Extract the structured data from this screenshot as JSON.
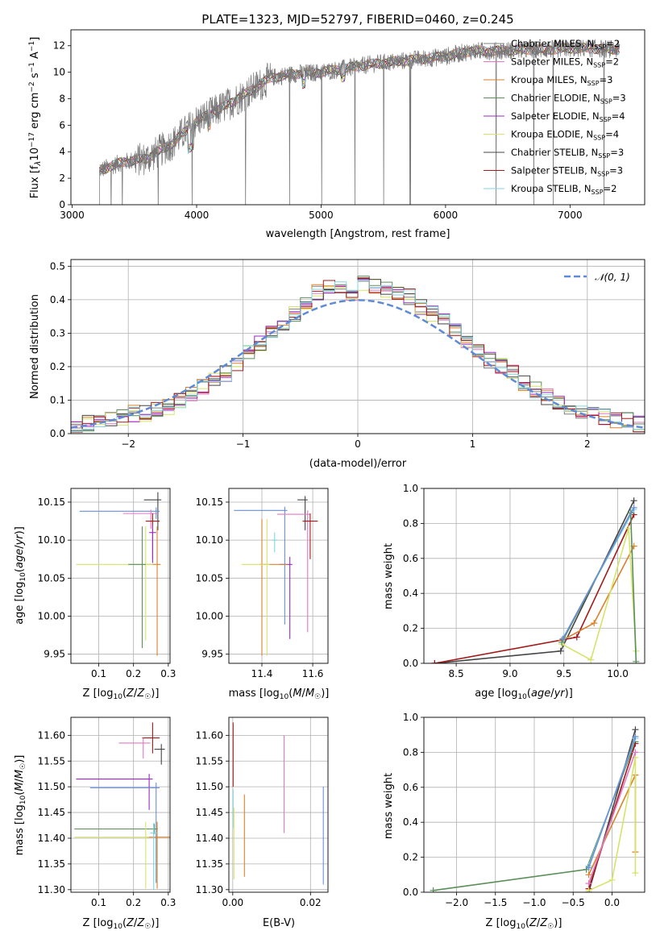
{
  "title": "PLATE=1323, MJD=52797, FIBERID=0460, z=0.245",
  "colors": {
    "chabrier_miles": "#7f7f7f",
    "salpeter_miles": "#e377c2",
    "kroupa_miles": "#d9822b",
    "chabrier_elodie": "#5a8f5a",
    "salpeter_elodie": "#9a28c8",
    "kroupa_elodie": "#d6e36a",
    "chabrier_stelib": "#444444",
    "salpeter_stelib": "#a31a1a",
    "kroupa_stelib": "#7fd6e0",
    "model_blue": "#6a8fd8",
    "normal_curve": "#5f8ad6"
  },
  "chart_data": [
    {
      "id": "spectrum",
      "type": "line",
      "xlabel": "wavelength [Angstrom, rest frame]",
      "ylabel": "Flux [f_λ10^-17 erg cm^-2 s^-1 A^-1]",
      "xlim": [
        2990,
        7600
      ],
      "ylim": [
        0,
        13.2
      ],
      "xticks": [
        3000,
        4000,
        5000,
        6000,
        7000
      ],
      "yticks": [
        0,
        2,
        4,
        6,
        8,
        10,
        12
      ],
      "grid": false,
      "legend_position": "right",
      "observed_envelope": {
        "x": [
          3220,
          3400,
          3600,
          3800,
          4000,
          4200,
          4400,
          4600,
          4800,
          5000,
          5200,
          5400,
          5600,
          5800,
          6000,
          6200,
          6400,
          6600,
          6800,
          7000,
          7200,
          7400
        ],
        "y": [
          2.6,
          3.2,
          3.5,
          4.6,
          6.3,
          7.3,
          8.4,
          9.6,
          9.9,
          10.0,
          10.3,
          10.6,
          10.8,
          11.0,
          11.2,
          11.6,
          11.6,
          11.7,
          11.7,
          11.8,
          11.8,
          11.7
        ]
      },
      "series": [
        {
          "name": "Chabrier MILES, N_SSP=2",
          "label_main": "Chabrier MILES, N",
          "label_sub": "SSP",
          "label_tail": "=2"
        },
        {
          "name": "Salpeter MILES, N_SSP=2",
          "label_main": "Salpeter MILES, N",
          "label_sub": "SSP",
          "label_tail": "=2"
        },
        {
          "name": "Kroupa MILES, N_SSP=3",
          "label_main": "Kroupa MILES, N",
          "label_sub": "SSP",
          "label_tail": "=3"
        },
        {
          "name": "Chabrier ELODIE, N_SSP=3",
          "label_main": "Chabrier ELODIE, N",
          "label_sub": "SSP",
          "label_tail": "=3"
        },
        {
          "name": "Salpeter ELODIE, N_SSP=4",
          "label_main": "Salpeter ELODIE, N",
          "label_sub": "SSP",
          "label_tail": "=4"
        },
        {
          "name": "Kroupa ELODIE, N_SSP=4",
          "label_main": "Kroupa ELODIE, N",
          "label_sub": "SSP",
          "label_tail": "=4"
        },
        {
          "name": "Chabrier STELIB, N_SSP=3",
          "label_main": "Chabrier STELIB, N",
          "label_sub": "SSP",
          "label_tail": "=3"
        },
        {
          "name": "Salpeter STELIB, N_SSP=3",
          "label_main": "Salpeter STELIB, N",
          "label_sub": "SSP",
          "label_tail": "=3"
        },
        {
          "name": "Kroupa STELIB, N_SSP=2",
          "label_main": "Kroupa STELIB, N",
          "label_sub": "SSP",
          "label_tail": "=2"
        }
      ]
    },
    {
      "id": "residuals",
      "type": "line",
      "xlabel": "(data-model)/error",
      "ylabel": "Normed distribution",
      "xlim": [
        -2.5,
        2.5
      ],
      "ylim": [
        0,
        0.52
      ],
      "xticks": [
        -2,
        -1,
        0,
        1,
        2
      ],
      "yticks": [
        0.0,
        0.1,
        0.2,
        0.3,
        0.4,
        0.5
      ],
      "grid": true,
      "legend_position": "top-right",
      "normal_label": "N(0,1)",
      "histogram_bins": [
        -2.5,
        -2.4,
        -2.3,
        -2.2,
        -2.1,
        -2.0,
        -1.9,
        -1.8,
        -1.7,
        -1.6,
        -1.5,
        -1.4,
        -1.3,
        -1.2,
        -1.1,
        -1.0,
        -0.9,
        -0.8,
        -0.7,
        -0.6,
        -0.5,
        -0.4,
        -0.3,
        -0.2,
        -0.1,
        0.0,
        0.1,
        0.2,
        0.3,
        0.4,
        0.5,
        0.6,
        0.7,
        0.8,
        0.9,
        1.0,
        1.1,
        1.2,
        1.3,
        1.4,
        1.5,
        1.6,
        1.7,
        1.8,
        1.9,
        2.0,
        2.1,
        2.2,
        2.3,
        2.4,
        2.5
      ],
      "histogram_reference": [
        0.02,
        0.03,
        0.03,
        0.04,
        0.05,
        0.06,
        0.06,
        0.07,
        0.08,
        0.1,
        0.12,
        0.14,
        0.16,
        0.18,
        0.21,
        0.24,
        0.27,
        0.3,
        0.33,
        0.36,
        0.39,
        0.42,
        0.44,
        0.43,
        0.42,
        0.45,
        0.44,
        0.43,
        0.42,
        0.41,
        0.38,
        0.36,
        0.34,
        0.31,
        0.28,
        0.25,
        0.22,
        0.2,
        0.18,
        0.15,
        0.13,
        0.11,
        0.09,
        0.08,
        0.07,
        0.06,
        0.05,
        0.04,
        0.04,
        0.03
      ]
    },
    {
      "id": "age_vs_Z",
      "type": "scatter",
      "xlabel": "Z [log10(Z/Z☉)]",
      "ylabel": "age [log10(age/yr)]",
      "xlim": [
        0.02,
        0.305
      ],
      "ylim": [
        9.938,
        10.168
      ],
      "xticks": [
        0.1,
        0.2,
        0.3
      ],
      "yticks": [
        9.95,
        10.0,
        10.05,
        10.1,
        10.15
      ],
      "grid": true,
      "points": [
        {
          "x": 0.27,
          "y": 10.153,
          "xerr": [
            0.04,
            0.01
          ],
          "yerr": [
            0.04,
            0.01
          ],
          "color": "chabrier_stelib"
        },
        {
          "x": 0.265,
          "y": 10.138,
          "xerr": [
            0.22,
            0.01
          ],
          "yerr": [
            0.01,
            0.005
          ],
          "color": "model_blue"
        },
        {
          "x": 0.25,
          "y": 10.135,
          "xerr": [
            0.08,
            0.02
          ],
          "yerr": [
            0.02,
            0.005
          ],
          "color": "salpeter_miles"
        },
        {
          "x": 0.255,
          "y": 10.125,
          "xerr": [
            0.02,
            0.02
          ],
          "yerr": [
            0.05,
            0.01
          ],
          "color": "salpeter_stelib"
        },
        {
          "x": 0.255,
          "y": 10.11,
          "xerr": [
            0.01,
            0.01
          ],
          "yerr": [
            0.04,
            0.01
          ],
          "color": "salpeter_elodie"
        },
        {
          "x": 0.268,
          "y": 10.068,
          "xerr": [
            0.03,
            0.01
          ],
          "yerr": [
            0.12,
            0.05
          ],
          "color": "kroupa_miles"
        },
        {
          "x": 0.235,
          "y": 10.068,
          "xerr": [
            0.2,
            0.02
          ],
          "yerr": [
            0.1,
            0.05
          ],
          "color": "kroupa_elodie"
        },
        {
          "x": 0.225,
          "y": 10.068,
          "xerr": [
            0.04,
            0.01
          ],
          "yerr": [
            0.11,
            0.05
          ],
          "color": "chabrier_elodie"
        }
      ]
    },
    {
      "id": "age_vs_mass",
      "type": "scatter",
      "xlabel": "mass [log10(M/M☉)]",
      "ylabel": "",
      "xlim": [
        11.27,
        11.66
      ],
      "ylim": [
        9.938,
        10.168
      ],
      "xticks": [
        11.4,
        11.6
      ],
      "yticks": [
        9.95,
        10.0,
        10.05,
        10.1,
        10.15
      ],
      "grid": true,
      "points": [
        {
          "x": 11.57,
          "y": 10.153,
          "xerr": [
            0.03,
            0.01
          ],
          "yerr": [
            0.04,
            0.005
          ],
          "color": "chabrier_stelib"
        },
        {
          "x": 11.49,
          "y": 10.139,
          "xerr": [
            0.2,
            0.01
          ],
          "yerr": [
            0.15,
            0.005
          ],
          "color": "model_blue"
        },
        {
          "x": 11.58,
          "y": 10.134,
          "xerr": [
            0.12,
            0.01
          ],
          "yerr": [
            0.155,
            0.005
          ],
          "color": "salpeter_miles"
        },
        {
          "x": 11.59,
          "y": 10.125,
          "xerr": [
            0.03,
            0.03
          ],
          "yerr": [
            0.05,
            0.01
          ],
          "color": "salpeter_stelib"
        },
        {
          "x": 11.51,
          "y": 10.068,
          "xerr": [
            0.04,
            0.01
          ],
          "yerr": [
            0.098,
            0.01
          ],
          "color": "salpeter_elodie"
        },
        {
          "x": 11.4,
          "y": 10.068,
          "xerr": [
            0.01,
            0.1
          ],
          "yerr": [
            0.12,
            0.06
          ],
          "color": "kroupa_miles"
        },
        {
          "x": 11.42,
          "y": 10.068,
          "xerr": [
            0.1,
            0.01
          ],
          "yerr": [
            0.12,
            0.06
          ],
          "color": "kroupa_elodie"
        },
        {
          "x": 11.45,
          "y": 10.1,
          "xerr": [
            0.01,
            0.01
          ],
          "yerr": [
            0.016,
            0.01
          ],
          "color": "kroupa_stelib"
        }
      ]
    },
    {
      "id": "mass_weight_vs_age",
      "type": "line",
      "xlabel": "age [log10(age/yr)]",
      "ylabel": "mass weight",
      "xlim": [
        8.2,
        10.25
      ],
      "ylim": [
        0,
        1.0
      ],
      "xticks": [
        8.5,
        9.0,
        9.5,
        10.0
      ],
      "yticks": [
        0.0,
        0.2,
        0.4,
        0.6,
        0.8,
        1.0
      ],
      "grid": true,
      "lines": [
        {
          "color": "chabrier_stelib",
          "x": [
            8.3,
            9.47,
            10.15
          ],
          "y": [
            0.0,
            0.07,
            0.93
          ]
        },
        {
          "color": "salpeter_stelib",
          "x": [
            8.3,
            9.62,
            10.15
          ],
          "y": [
            0.0,
            0.15,
            0.85
          ]
        },
        {
          "color": "kroupa_miles",
          "x": [
            9.48,
            9.78,
            10.15
          ],
          "y": [
            0.13,
            0.23,
            0.67
          ]
        },
        {
          "color": "kroupa_elodie",
          "x": [
            9.48,
            9.75,
            10.1,
            10.17
          ],
          "y": [
            0.11,
            0.02,
            0.77,
            0.07
          ]
        },
        {
          "color": "kroupa_stelib",
          "x": [
            9.5,
            10.15
          ],
          "y": [
            0.15,
            0.88
          ]
        },
        {
          "color": "chabrier_elodie",
          "x": [
            9.48,
            10.12,
            10.17
          ],
          "y": [
            0.12,
            0.86,
            0.01
          ]
        },
        {
          "color": "model_blue",
          "x": [
            9.49,
            10.15
          ],
          "y": [
            0.14,
            0.89
          ]
        }
      ]
    },
    {
      "id": "mass_vs_Z",
      "type": "scatter",
      "xlabel": "Z [log10(Z/Z☉)]",
      "ylabel": "mass [log10(M/M☉)]",
      "xlim": [
        0.02,
        0.305
      ],
      "ylim": [
        11.295,
        11.635
      ],
      "xticks": [
        0.1,
        0.2,
        0.3
      ],
      "yticks": [
        11.3,
        11.35,
        11.4,
        11.45,
        11.5,
        11.55,
        11.6
      ],
      "grid": true,
      "points": [
        {
          "x": 0.255,
          "y": 11.595,
          "xerr": [
            0.03,
            0.02
          ],
          "yerr": [
            0.03,
            0.03
          ],
          "color": "salpeter_stelib"
        },
        {
          "x": 0.228,
          "y": 11.585,
          "xerr": [
            0.07,
            0.02
          ],
          "yerr": [
            0.03,
            0.01
          ],
          "color": "salpeter_miles"
        },
        {
          "x": 0.28,
          "y": 11.573,
          "xerr": [
            0.02,
            0.01
          ],
          "yerr": [
            0.03,
            0.01
          ],
          "color": "chabrier_stelib"
        },
        {
          "x": 0.245,
          "y": 11.515,
          "xerr": [
            0.21,
            0.01
          ],
          "yerr": [
            0.06,
            0.01
          ],
          "color": "salpeter_elodie"
        },
        {
          "x": 0.265,
          "y": 11.498,
          "xerr": [
            0.19,
            0.01
          ],
          "yerr": [
            0.185,
            0.01
          ],
          "color": "model_blue"
        },
        {
          "x": 0.26,
          "y": 11.418,
          "xerr": [
            0.23,
            0.01
          ],
          "yerr": [
            0.01,
            0.01
          ],
          "color": "chabrier_elodie"
        },
        {
          "x": 0.268,
          "y": 11.402,
          "xerr": [
            0.03,
            0.04
          ],
          "yerr": [
            0.1,
            0.03
          ],
          "color": "kroupa_miles"
        },
        {
          "x": 0.235,
          "y": 11.402,
          "xerr": [
            0.205,
            0.01
          ],
          "yerr": [
            0.1,
            0.03
          ],
          "color": "kroupa_elodie"
        },
        {
          "x": 0.258,
          "y": 11.41,
          "xerr": [
            0.01,
            0.01
          ],
          "yerr": [
            0.11,
            0.02
          ],
          "color": "kroupa_stelib"
        }
      ]
    },
    {
      "id": "mass_vs_EBV",
      "type": "scatter",
      "xlabel": "E(B-V)",
      "ylabel": "",
      "xlim": [
        -0.001,
        0.0245
      ],
      "ylim": [
        11.295,
        11.635
      ],
      "xticks": [
        0.0,
        0.02
      ],
      "yticks": [
        11.3,
        11.35,
        11.4,
        11.45,
        11.5,
        11.55,
        11.6
      ],
      "grid": true,
      "points": [
        {
          "x": 0.0001,
          "y": 11.585,
          "xerr": [
            0,
            0
          ],
          "yerr": [
            0.085,
            0.04
          ],
          "color": "salpeter_stelib"
        },
        {
          "x": 0.0001,
          "y": 11.475,
          "xerr": [
            0,
            0
          ],
          "yerr": [
            0.055,
            0.02
          ],
          "color": "kroupa_stelib"
        },
        {
          "x": 0.0003,
          "y": 11.44,
          "xerr": [
            0,
            0
          ],
          "yerr": [
            0.12,
            0.02
          ],
          "color": "kroupa_elodie"
        },
        {
          "x": 0.003,
          "y": 11.42,
          "xerr": [
            0,
            0
          ],
          "yerr": [
            0.095,
            0.065
          ],
          "color": "kroupa_miles"
        },
        {
          "x": 0.0132,
          "y": 11.505,
          "xerr": [
            0,
            0
          ],
          "yerr": [
            0.095,
            0.095
          ],
          "color": "salpeter_miles"
        },
        {
          "x": 0.0233,
          "y": 11.405,
          "xerr": [
            0,
            0
          ],
          "yerr": [
            0.095,
            0.095
          ],
          "color": "model_blue"
        }
      ]
    },
    {
      "id": "mass_weight_vs_Z",
      "type": "line",
      "xlabel": "Z [log10(Z/Z☉)]",
      "ylabel": "mass weight",
      "xlim": [
        -2.42,
        0.42
      ],
      "ylim": [
        0,
        1.0
      ],
      "xticks": [
        -2.0,
        -1.5,
        -1.0,
        -0.5,
        0.0
      ],
      "yticks": [
        0.0,
        0.2,
        0.4,
        0.6,
        0.8,
        1.0
      ],
      "grid": true,
      "lines": [
        {
          "color": "chabrier_elodie",
          "x": [
            -2.3,
            -0.33,
            0.3
          ],
          "y": [
            0.01,
            0.13,
            0.86
          ]
        },
        {
          "color": "chabrier_stelib",
          "x": [
            -0.3,
            0.3
          ],
          "y": [
            0.0,
            0.93
          ]
        },
        {
          "color": "salpeter_stelib",
          "x": [
            -0.3,
            0.3
          ],
          "y": [
            0.02,
            0.85
          ]
        },
        {
          "color": "kroupa_miles",
          "x": [
            -0.3,
            0.3,
            0.3
          ],
          "y": [
            0.1,
            0.67,
            0.23
          ]
        },
        {
          "color": "kroupa_elodie",
          "x": [
            -0.3,
            0.0,
            0.3,
            0.3
          ],
          "y": [
            0.01,
            0.07,
            0.77,
            0.11
          ]
        },
        {
          "color": "kroupa_stelib",
          "x": [
            -0.3,
            0.3
          ],
          "y": [
            0.15,
            0.88
          ]
        },
        {
          "color": "model_blue",
          "x": [
            -0.3,
            0.3
          ],
          "y": [
            0.14,
            0.89
          ]
        },
        {
          "color": "salpeter_miles",
          "x": [
            -0.3,
            0.3
          ],
          "y": [
            0.05,
            0.8
          ]
        }
      ]
    }
  ]
}
